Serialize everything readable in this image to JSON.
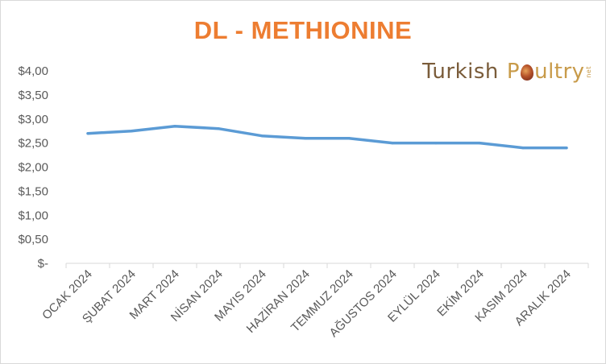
{
  "chart_data": {
    "type": "line",
    "title": "DL - METHIONINE",
    "categories": [
      "OCAK 2024",
      "ŞUBAT 2024",
      "MART 2024",
      "NİSAN 2024",
      "MAYIS 2024",
      "HAZİRAN 2024",
      "TEMMUZ 2024",
      "AĞUSTOS 2024",
      "EYLÜL 2024",
      "EKİM 2024",
      "KASIM 2024",
      "ARALIK 2024"
    ],
    "series": [
      {
        "values": [
          2.7,
          2.75,
          2.85,
          2.8,
          2.65,
          2.6,
          2.6,
          2.5,
          2.5,
          2.5,
          2.4,
          2.4
        ],
        "color": "#5b9bd5"
      }
    ],
    "y_ticks": [
      0,
      0.5,
      1.0,
      1.5,
      2.0,
      2.5,
      3.0,
      3.5,
      4.0
    ],
    "y_tick_labels": [
      "$-",
      "$0,50",
      "$1,00",
      "$1,50",
      "$2,00",
      "$2,50",
      "$3,00",
      "$3,50",
      "$4,00"
    ],
    "ylim": [
      0,
      4
    ],
    "xlabel": "",
    "ylabel": "",
    "grid": false,
    "title_color": "#ed7d31",
    "axis_color": "#d9d9d9",
    "label_color": "#595959"
  },
  "logo": {
    "word1": "Turkish",
    "word2_start": "P",
    "word2_end": "ultry",
    "suffix": "net",
    "icon": "egg-icon"
  }
}
